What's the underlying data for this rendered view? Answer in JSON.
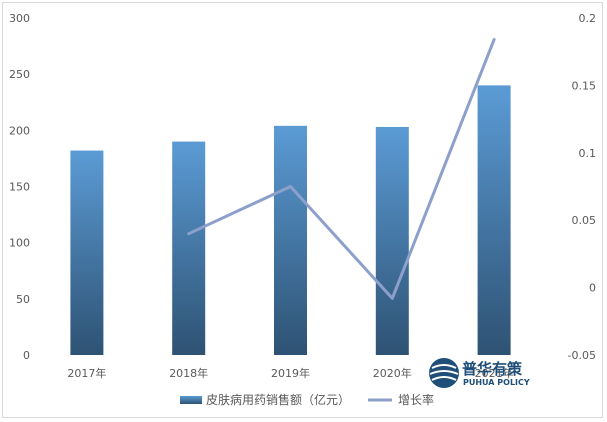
{
  "chart_data": {
    "type": "bar",
    "categories": [
      "2017年",
      "2018年",
      "2019年",
      "2020年",
      "2021年"
    ],
    "series": [
      {
        "name": "皮肤病用药销售额（亿元）",
        "kind": "bar",
        "axis": "left",
        "values": [
          182,
          190,
          204,
          203,
          240
        ]
      },
      {
        "name": "增长率",
        "kind": "line",
        "axis": "right",
        "values": [
          null,
          0.04,
          0.075,
          -0.008,
          0.184
        ]
      }
    ],
    "ylim_left": [
      0,
      300
    ],
    "yticks_left": [
      "0",
      "50",
      "100",
      "150",
      "200",
      "250",
      "300"
    ],
    "ylim_right": [
      -0.05,
      0.2
    ],
    "yticks_right": [
      "-0.05",
      "0",
      "0.05",
      "0.1",
      "0.15",
      "0.2"
    ],
    "grid": false,
    "legend_placement": "bottom",
    "colors": {
      "bar_top": "#5b9bd5",
      "bar_bottom": "#2e5273",
      "line": "#8da0cb"
    }
  },
  "watermark": {
    "name_cn": "普华有策",
    "name_en": "PUHUA POLICY"
  }
}
